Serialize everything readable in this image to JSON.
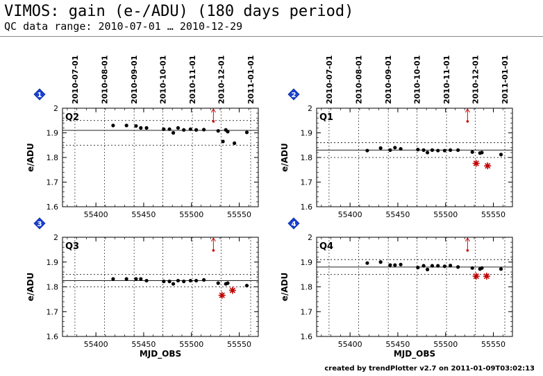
{
  "header": {
    "title": "VIMOS: gain (e-/ADU) (180 days period)",
    "subtitle": "QC data range: 2010-07-01 … 2010-12-29"
  },
  "footer": {
    "text": "created by trendPlotter v2.7 on 2011-01-09T03:02:13"
  },
  "colors": {
    "badge": "#1a3fd1",
    "outlier": "#c00000",
    "limit_arrow": "#cc0000",
    "points": "#000000"
  },
  "chart_data": [
    {
      "type": "scatter",
      "panel": "1",
      "label": "Q2",
      "xlabel": "",
      "ylabel": "e/ADU",
      "xlim": [
        55365,
        55570
      ],
      "ylim": [
        1.6,
        2.0
      ],
      "x_ticks": [
        55400,
        55450,
        55500,
        55550
      ],
      "y_ticks": [
        "1.6",
        "1.7",
        "1.8",
        "1.9",
        "2"
      ],
      "date_ticks": [
        "2010-07-01",
        "2010-08-01",
        "2010-09-01",
        "2010-10-01",
        "2010-11-01",
        "2010-12-01",
        "2011-01-01"
      ],
      "date_mjd": [
        55378,
        55409,
        55440,
        55470,
        55501,
        55531,
        55562
      ],
      "reference": 1.91,
      "limits": [
        1.85,
        1.95
      ],
      "out_of_range_x": 55523,
      "points": [
        [
          55418,
          1.93
        ],
        [
          55432,
          1.93
        ],
        [
          55442,
          1.928
        ],
        [
          55447,
          1.92
        ],
        [
          55453,
          1.92
        ],
        [
          55471,
          1.915
        ],
        [
          55477,
          1.915
        ],
        [
          55481,
          1.9
        ],
        [
          55486,
          1.92
        ],
        [
          55492,
          1.912
        ],
        [
          55499,
          1.915
        ],
        [
          55505,
          1.912
        ],
        [
          55513,
          1.913
        ],
        [
          55528,
          1.908
        ],
        [
          55533,
          1.865
        ],
        [
          55536,
          1.912
        ],
        [
          55538,
          1.905
        ],
        [
          55545,
          1.858
        ],
        [
          55558,
          1.902
        ]
      ],
      "outliers": []
    },
    {
      "type": "scatter",
      "panel": "2",
      "label": "Q1",
      "xlabel": "",
      "ylabel": "e/ADU",
      "xlim": [
        55365,
        55570
      ],
      "ylim": [
        1.6,
        2.0
      ],
      "x_ticks": [
        55400,
        55450,
        55500,
        55550
      ],
      "y_ticks": [
        "1.6",
        "1.7",
        "1.8",
        "1.9",
        "2"
      ],
      "date_ticks": [
        "2010-07-01",
        "2010-08-01",
        "2010-09-01",
        "2010-10-01",
        "2010-11-01",
        "2010-12-01",
        "2011-01-01"
      ],
      "date_mjd": [
        55378,
        55409,
        55440,
        55470,
        55501,
        55531,
        55562
      ],
      "reference": 1.83,
      "limits": [
        1.8,
        1.86
      ],
      "out_of_range_x": 55523,
      "points": [
        [
          55418,
          1.828
        ],
        [
          55432,
          1.838
        ],
        [
          55442,
          1.83
        ],
        [
          55447,
          1.84
        ],
        [
          55453,
          1.835
        ],
        [
          55471,
          1.832
        ],
        [
          55477,
          1.83
        ],
        [
          55481,
          1.82
        ],
        [
          55486,
          1.83
        ],
        [
          55492,
          1.828
        ],
        [
          55499,
          1.828
        ],
        [
          55505,
          1.83
        ],
        [
          55513,
          1.83
        ],
        [
          55528,
          1.822
        ],
        [
          55536,
          1.818
        ],
        [
          55538,
          1.82
        ],
        [
          55558,
          1.812
        ]
      ],
      "outliers": [
        [
          55532,
          1.776
        ],
        [
          55544,
          1.766
        ]
      ]
    },
    {
      "type": "scatter",
      "panel": "3",
      "label": "Q3",
      "xlabel": "MJD_OBS",
      "ylabel": "e/ADU",
      "xlim": [
        55365,
        55570
      ],
      "ylim": [
        1.6,
        2.0
      ],
      "x_ticks": [
        55400,
        55450,
        55500,
        55550
      ],
      "y_ticks": [
        "1.6",
        "1.7",
        "1.8",
        "1.9",
        "2"
      ],
      "date_ticks": [],
      "date_mjd": [],
      "reference": 1.825,
      "limits": [
        1.8,
        1.85
      ],
      "out_of_range_x": 55523,
      "points": [
        [
          55418,
          1.832
        ],
        [
          55432,
          1.832
        ],
        [
          55442,
          1.832
        ],
        [
          55447,
          1.832
        ],
        [
          55453,
          1.825
        ],
        [
          55471,
          1.822
        ],
        [
          55477,
          1.822
        ],
        [
          55481,
          1.812
        ],
        [
          55486,
          1.825
        ],
        [
          55492,
          1.822
        ],
        [
          55499,
          1.825
        ],
        [
          55505,
          1.825
        ],
        [
          55513,
          1.828
        ],
        [
          55528,
          1.815
        ],
        [
          55536,
          1.812
        ],
        [
          55538,
          1.815
        ],
        [
          55558,
          1.805
        ]
      ],
      "outliers": [
        [
          55532,
          1.766
        ],
        [
          55543,
          1.786
        ]
      ]
    },
    {
      "type": "scatter",
      "panel": "4",
      "label": "Q4",
      "xlabel": "MJD_OBS",
      "ylabel": "e/ADU",
      "xlim": [
        55365,
        55570
      ],
      "ylim": [
        1.6,
        2.0
      ],
      "x_ticks": [
        55400,
        55450,
        55500,
        55550
      ],
      "y_ticks": [
        "1.6",
        "1.7",
        "1.8",
        "1.9",
        "2"
      ],
      "date_ticks": [],
      "date_mjd": [],
      "reference": 1.88,
      "limits": [
        1.85,
        1.91
      ],
      "out_of_range_x": 55523,
      "points": [
        [
          55418,
          1.896
        ],
        [
          55432,
          1.9
        ],
        [
          55442,
          1.888
        ],
        [
          55447,
          1.888
        ],
        [
          55453,
          1.89
        ],
        [
          55471,
          1.878
        ],
        [
          55477,
          1.885
        ],
        [
          55481,
          1.87
        ],
        [
          55486,
          1.885
        ],
        [
          55492,
          1.885
        ],
        [
          55499,
          1.883
        ],
        [
          55505,
          1.886
        ],
        [
          55513,
          1.88
        ],
        [
          55528,
          1.876
        ],
        [
          55536,
          1.872
        ],
        [
          55538,
          1.876
        ],
        [
          55558,
          1.872
        ]
      ],
      "outliers": [
        [
          55532,
          1.843
        ],
        [
          55543,
          1.843
        ]
      ]
    }
  ]
}
